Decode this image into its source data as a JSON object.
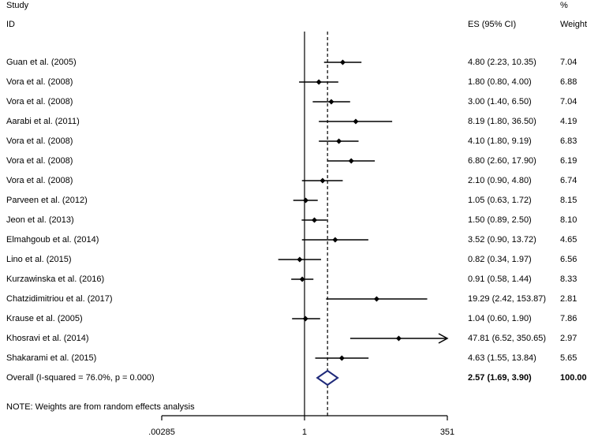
{
  "header": {
    "study_label": "Study",
    "id_label": "ID",
    "es_label": "ES (95% CI)",
    "pct_label": "%",
    "weight_label": "Weight"
  },
  "note": "NOTE: Weights are from random effects analysis",
  "chart_data": {
    "type": "forest",
    "x_scale": "log",
    "xlim": [
      0.00285,
      351
    ],
    "xticks": [
      {
        "value": 0.00285,
        "label": ".00285"
      },
      {
        "value": 1,
        "label": "1"
      },
      {
        "value": 351,
        "label": "351"
      }
    ],
    "null_line": 1,
    "overall_line": 2.57,
    "studies": [
      {
        "id": "Guan et al. (2005)",
        "es": 4.8,
        "lo": 2.23,
        "hi": 10.35,
        "ci_text": "4.80 (2.23, 10.35)",
        "weight": "7.04"
      },
      {
        "id": "Vora et al. (2008)",
        "es": 1.8,
        "lo": 0.8,
        "hi": 4.0,
        "ci_text": "1.80 (0.80, 4.00)",
        "weight": "6.88"
      },
      {
        "id": "Vora et al. (2008)",
        "es": 3.0,
        "lo": 1.4,
        "hi": 6.5,
        "ci_text": "3.00 (1.40, 6.50)",
        "weight": "7.04"
      },
      {
        "id": "Aarabi et al. (2011)",
        "es": 8.19,
        "lo": 1.8,
        "hi": 36.5,
        "ci_text": "8.19 (1.80, 36.50)",
        "weight": "4.19"
      },
      {
        "id": "Vora et al. (2008)",
        "es": 4.1,
        "lo": 1.8,
        "hi": 9.19,
        "ci_text": "4.10 (1.80, 9.19)",
        "weight": "6.83"
      },
      {
        "id": "Vora et al. (2008)",
        "es": 6.8,
        "lo": 2.6,
        "hi": 17.9,
        "ci_text": "6.80 (2.60, 17.90)",
        "weight": "6.19"
      },
      {
        "id": "Vora et al. (2008)",
        "es": 2.1,
        "lo": 0.9,
        "hi": 4.8,
        "ci_text": "2.10 (0.90, 4.80)",
        "weight": "6.74"
      },
      {
        "id": "Parveen et al. (2012)",
        "es": 1.05,
        "lo": 0.63,
        "hi": 1.72,
        "ci_text": "1.05 (0.63, 1.72)",
        "weight": "8.15"
      },
      {
        "id": "Jeon et al. (2013)",
        "es": 1.5,
        "lo": 0.89,
        "hi": 2.5,
        "ci_text": "1.50 (0.89, 2.50)",
        "weight": "8.10"
      },
      {
        "id": "Elmahgoub et al. (2014)",
        "es": 3.52,
        "lo": 0.9,
        "hi": 13.72,
        "ci_text": "3.52 (0.90, 13.72)",
        "weight": "4.65"
      },
      {
        "id": "Lino et al. (2015)",
        "es": 0.82,
        "lo": 0.34,
        "hi": 1.97,
        "ci_text": "0.82 (0.34, 1.97)",
        "weight": "6.56"
      },
      {
        "id": "Kurzawinska et al. (2016)",
        "es": 0.91,
        "lo": 0.58,
        "hi": 1.44,
        "ci_text": "0.91 (0.58, 1.44)",
        "weight": "8.33"
      },
      {
        "id": "Chatzidimitriou et al. (2017)",
        "es": 19.29,
        "lo": 2.42,
        "hi": 153.87,
        "ci_text": "19.29 (2.42, 153.87)",
        "weight": "2.81"
      },
      {
        "id": "Krause et al. (2005)",
        "es": 1.04,
        "lo": 0.6,
        "hi": 1.9,
        "ci_text": "1.04 (0.60, 1.90)",
        "weight": "7.86"
      },
      {
        "id": "Khosravi et al. (2014)",
        "es": 47.81,
        "lo": 6.52,
        "hi": 350.65,
        "ci_text": "47.81 (6.52, 350.65)",
        "weight": "2.97",
        "arrow": true
      },
      {
        "id": "Shakarami et al. (2015)",
        "es": 4.63,
        "lo": 1.55,
        "hi": 13.84,
        "ci_text": "4.63 (1.55, 13.84)",
        "weight": "5.65"
      }
    ],
    "overall": {
      "id": "Overall  (I-squared = 76.0%, p = 0.000)",
      "es": 2.57,
      "lo": 1.69,
      "hi": 3.9,
      "ci_text": "2.57 (1.69, 3.90)",
      "weight": "100.00",
      "diamond_color": "#1f2a7a"
    }
  }
}
